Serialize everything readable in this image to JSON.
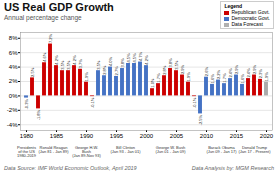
{
  "chart_data": {
    "type": "bar",
    "title": "US Real GDP Growth",
    "subtitle": "Annual percentage change",
    "x": [
      1980,
      1981,
      1982,
      1983,
      1984,
      1985,
      1986,
      1987,
      1988,
      1989,
      1990,
      1991,
      1992,
      1993,
      1994,
      1995,
      1996,
      1997,
      1998,
      1999,
      2000,
      2001,
      2002,
      2003,
      2004,
      2005,
      2006,
      2007,
      2008,
      2009,
      2010,
      2011,
      2012,
      2013,
      2014,
      2015,
      2016,
      2017,
      2018,
      2019,
      2020
    ],
    "values": [
      -0.3,
      2.5,
      -1.8,
      4.6,
      7.2,
      4.2,
      3.5,
      3.5,
      4.2,
      3.7,
      1.9,
      -0.1,
      3.5,
      2.8,
      4.0,
      2.7,
      3.8,
      4.5,
      4.5,
      4.7,
      4.2,
      1.0,
      1.7,
      2.8,
      3.8,
      3.5,
      2.9,
      1.9,
      -0.1,
      -2.5,
      2.6,
      1.6,
      2.2,
      1.7,
      2.4,
      2.9,
      1.6,
      2.4,
      2.9,
      2.3,
      1.9
    ],
    "value_labels": [
      "-0.3%",
      "2.5%",
      "-1.8%",
      "4.6%",
      "7.2%",
      "4.2%",
      "3.5%",
      "3.5%",
      "4.2%",
      "3.7%",
      "1.9%",
      "-0.1%",
      "3.5%",
      "2.8%",
      "4.0%",
      "2.7%",
      "3.8%",
      "4.5%",
      "4.5%",
      "4.7%",
      "4.2%",
      "1.0%",
      "1.7%",
      "2.8%",
      "3.8%",
      "3.5%",
      "2.9%",
      "1.9%",
      "-0.1%",
      "-2.5%",
      "2.6%",
      "1.6%",
      "2.2%",
      "1.7%",
      "2.4%",
      "2.9%",
      "1.6%",
      "2.4%",
      "2.9%",
      "2.3%",
      "1.9%"
    ],
    "colors": [
      "#4472c4",
      "#cc0000",
      "#cc0000",
      "#cc0000",
      "#cc0000",
      "#cc0000",
      "#cc0000",
      "#cc0000",
      "#cc0000",
      "#cc0000",
      "#cc0000",
      "#cc0000",
      "#4472c4",
      "#4472c4",
      "#4472c4",
      "#4472c4",
      "#4472c4",
      "#4472c4",
      "#4472c4",
      "#4472c4",
      "#4472c4",
      "#cc0000",
      "#cc0000",
      "#cc0000",
      "#cc0000",
      "#cc0000",
      "#cc0000",
      "#cc0000",
      "#cc0000",
      "#4472c4",
      "#4472c4",
      "#4472c4",
      "#4472c4",
      "#4472c4",
      "#4472c4",
      "#4472c4",
      "#4472c4",
      "#cc0000",
      "#cc0000",
      "#cc0000",
      "#aaaaaa"
    ],
    "data_labels": true,
    "xlim": [
      1979.0,
      2021.0
    ],
    "xticks": [
      1980,
      1985,
      1990,
      1995,
      2000,
      2005,
      2010,
      2015,
      2020
    ],
    "ylim": [
      -4.8,
      8.8
    ],
    "yticks": [
      {
        "value": -4,
        "label": "-4%"
      },
      {
        "value": -2,
        "label": "-2%"
      },
      {
        "value": 0,
        "label": "0%"
      },
      {
        "value": 2,
        "label": "2%"
      },
      {
        "value": 4,
        "label": "4%"
      },
      {
        "value": 6,
        "label": "6%"
      },
      {
        "value": 8,
        "label": "8%"
      }
    ],
    "grid": true,
    "legend": "upper right",
    "legend_title": "Legend",
    "legend_entries": [
      {
        "name": "Republican Govt.",
        "color": "#cc0000"
      },
      {
        "name": "Democratic Govt.",
        "color": "#4472c4"
      },
      {
        "name": "Data Forecast",
        "color": "#b0b0b0"
      }
    ],
    "annotations": [
      {
        "x": 1980.0,
        "text": "Presidents\nof the US\n1980-2019"
      },
      {
        "x": 1984.5,
        "text": "Ronald Reagan\n(Jan 81 - Jan 89)"
      },
      {
        "x": 1990.0,
        "text": "George H.W.\nBush\n(Jan 89-Nov 93)"
      },
      {
        "x": 1996.5,
        "text": "Bill Clinton\n(Jan 93 - Jan 01)"
      },
      {
        "x": 2004.0,
        "text": "George W. Bush\n(Jun 01 - Jan 09)"
      },
      {
        "x": 2012.5,
        "text": "Barack Obama\n(Jun 09 - Jan 17)"
      },
      {
        "x": 2018.0,
        "text": "Donald Trump\n(Jan 17 - Present)"
      }
    ],
    "source": "Data Source: IMF World Economic Outlook, April 2019",
    "analysis": "Data Analysis by: MGM Research"
  }
}
